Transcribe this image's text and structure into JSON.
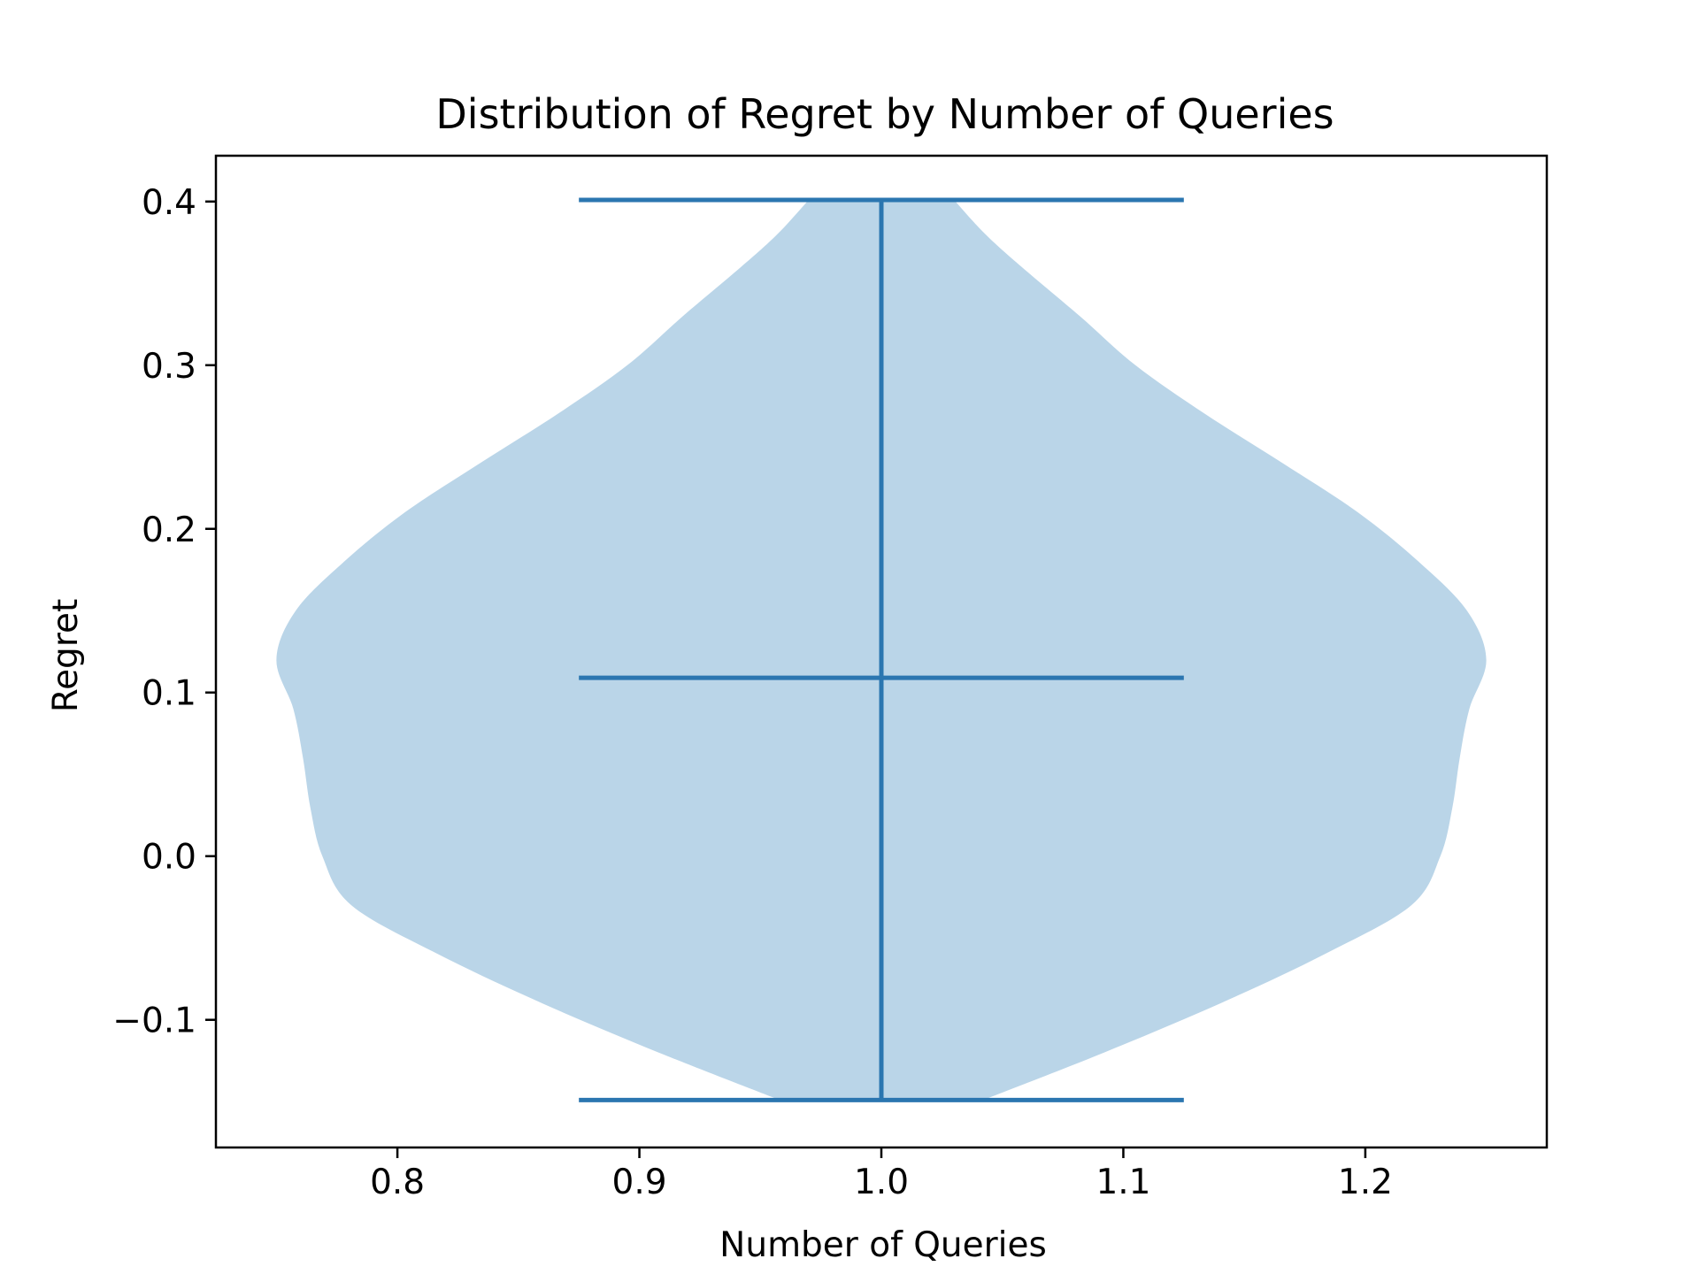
{
  "chart_data": {
    "type": "violin",
    "title": "Distribution of Regret by Number of Queries",
    "xlabel": "Number of Queries",
    "ylabel": "Regret",
    "xlim": [
      0.725,
      1.275
    ],
    "ylim": [
      -0.178,
      0.428
    ],
    "x_ticks": [
      0.8,
      0.9,
      1.0,
      1.1,
      1.2
    ],
    "x_tick_labels": [
      "0.8",
      "0.9",
      "1.0",
      "1.1",
      "1.2"
    ],
    "y_ticks": [
      -0.1,
      0.0,
      0.1,
      0.2,
      0.3,
      0.4
    ],
    "y_tick_labels": [
      "−0.1",
      "0.0",
      "0.1",
      "0.2",
      "0.3",
      "0.4"
    ],
    "grid": false,
    "violins": [
      {
        "position": 1.0,
        "min": -0.149,
        "max": 0.401,
        "median": 0.109,
        "density_profile": [
          {
            "y": -0.149,
            "half_width": 0.042
          },
          {
            "y": -0.12,
            "half_width": 0.092
          },
          {
            "y": -0.09,
            "half_width": 0.14
          },
          {
            "y": -0.06,
            "half_width": 0.183
          },
          {
            "y": -0.03,
            "half_width": 0.219
          },
          {
            "y": 0.0,
            "half_width": 0.231
          },
          {
            "y": 0.03,
            "half_width": 0.236
          },
          {
            "y": 0.06,
            "half_width": 0.239
          },
          {
            "y": 0.09,
            "half_width": 0.243
          },
          {
            "y": 0.12,
            "half_width": 0.25
          },
          {
            "y": 0.15,
            "half_width": 0.242
          },
          {
            "y": 0.18,
            "half_width": 0.222
          },
          {
            "y": 0.21,
            "half_width": 0.197
          },
          {
            "y": 0.24,
            "half_width": 0.166
          },
          {
            "y": 0.27,
            "half_width": 0.134
          },
          {
            "y": 0.3,
            "half_width": 0.105
          },
          {
            "y": 0.33,
            "half_width": 0.082
          },
          {
            "y": 0.36,
            "half_width": 0.058
          },
          {
            "y": 0.38,
            "half_width": 0.043
          },
          {
            "y": 0.401,
            "half_width": 0.03
          }
        ],
        "whisker_half_width": 0.125,
        "fill_color": "#bad5e8",
        "line_color": "#2b76b0"
      }
    ]
  }
}
